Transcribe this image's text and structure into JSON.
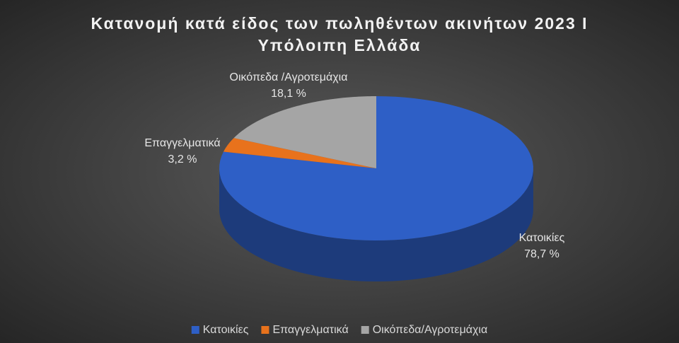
{
  "chart_data": {
    "type": "pie",
    "title": [
      "Κατανομή κατά είδος των πωληθέντων ακινήτων 2023 Ι",
      "Υπόλοιπη Ελλάδα"
    ],
    "categories": [
      "Κατοικίες",
      "Επαγγελματικά",
      "Οικόπεδα/Αγροτεμάχια"
    ],
    "data_label_names": [
      "Κατοικίες",
      "Επαγγελματικά",
      "Οικόπεδα /Αγροτεμάχια"
    ],
    "values": [
      78.7,
      3.2,
      18.1
    ],
    "value_labels": [
      "78,7 %",
      "3,2 %",
      "18,1 %"
    ],
    "colors": [
      "#2e5fc6",
      "#e8721c",
      "#a5a5a5"
    ],
    "legend": "bottom"
  }
}
